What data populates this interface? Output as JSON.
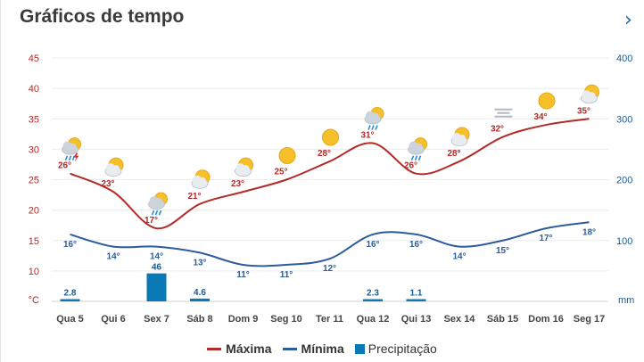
{
  "header": {
    "title": "Gráficos de tempo",
    "next_icon": "chevron-right-icon"
  },
  "chart_data": {
    "type": "line",
    "categories": [
      "Qua 5",
      "Qui 6",
      "Sex 7",
      "Sáb 8",
      "Dom 9",
      "Seg 10",
      "Ter 11",
      "Qua 12",
      "Qui 13",
      "Sex 14",
      "Sáb 15",
      "Dom 16",
      "Seg 17"
    ],
    "series": [
      {
        "name": "Máxima",
        "unit": "°C",
        "color": "#b22a2a",
        "values": [
          26,
          23,
          17,
          21,
          23,
          25,
          28,
          31,
          26,
          28,
          32,
          34,
          35
        ]
      },
      {
        "name": "Mínima",
        "unit": "°C",
        "color": "#2c5c9c",
        "values": [
          16,
          14,
          14,
          13,
          11,
          11,
          12,
          16,
          16,
          14,
          15,
          17,
          18
        ]
      },
      {
        "name": "Precipitação",
        "unit": "mm",
        "color": "#0b79b6",
        "values": [
          2.8,
          null,
          46,
          4.6,
          null,
          null,
          null,
          2.3,
          1.1,
          null,
          null,
          null,
          null
        ]
      }
    ],
    "temp_labels_max": [
      "26°",
      "23°",
      "17°",
      "21°",
      "23°",
      "25°",
      "28°",
      "31°",
      "26°",
      "28°",
      "32°",
      "34°",
      "35°"
    ],
    "temp_labels_min": [
      "16°",
      "14°",
      "14°",
      "13°",
      "11°",
      "11°",
      "12°",
      "16°",
      "16°",
      "14°",
      "15°",
      "17°",
      "18°"
    ],
    "precip_labels": [
      "2.8",
      "",
      "46",
      "4.6",
      "",
      "",
      "",
      "2.3",
      "1.1",
      "",
      "",
      "",
      ""
    ],
    "weather_icons": [
      "thunderstorm-icon",
      "partly-cloudy-icon",
      "rain-icon",
      "partly-cloudy-icon",
      "partly-cloudy-icon",
      "sunny-icon",
      "sunny-icon",
      "rain-icon",
      "rain-icon",
      "partly-cloudy-icon",
      "haze-icon",
      "sunny-icon",
      "partly-cloudy-icon"
    ],
    "y_left": {
      "label": "°C",
      "ticks": [
        "10",
        "15",
        "20",
        "25",
        "30",
        "35",
        "40",
        "45"
      ],
      "range": [
        5,
        45
      ]
    },
    "y_right": {
      "label": "mm",
      "ticks": [
        "100",
        "200",
        "300",
        "400"
      ],
      "range": [
        0,
        400
      ]
    },
    "legend": {
      "placement": "bottom-center"
    }
  },
  "colors": {
    "max": "#b22a2a",
    "min": "#2c5c9c",
    "precip": "#0b79b6",
    "grid": "#ececec",
    "tick_left": "#b22a2a",
    "tick_right": "#1b5a90"
  }
}
